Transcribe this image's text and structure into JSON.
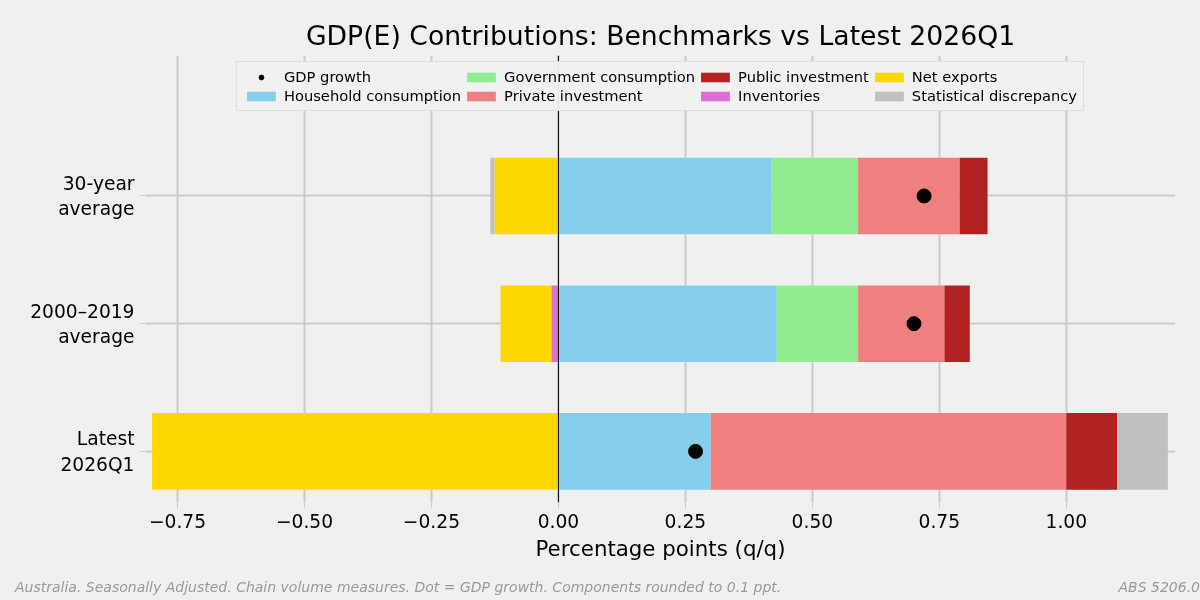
{
  "chart_data": {
    "type": "bar",
    "orientation": "horizontal",
    "stacked": true,
    "title": "GDP(E) Contributions: Benchmarks vs Latest 2026Q1",
    "xlabel": "Percentage points (q/q)",
    "categories": [
      "30-year\naverage",
      "2000–2019\naverage",
      "Latest\n2026Q1"
    ],
    "series": [
      {
        "name": "GDP growth",
        "type": "scatter",
        "color": "#000000",
        "values": [
          0.72,
          0.7,
          0.27
        ]
      },
      {
        "name": "Household consumption",
        "color": "#87ceeb",
        "values": [
          0.42,
          0.43,
          0.3
        ]
      },
      {
        "name": "Government consumption",
        "color": "#90ee90",
        "values": [
          0.17,
          0.16,
          0.0
        ]
      },
      {
        "name": "Private investment",
        "color": "#f08080",
        "values": [
          0.2,
          0.17,
          0.7
        ]
      },
      {
        "name": "Public investment",
        "color": "#b22222",
        "values": [
          0.055,
          0.05,
          0.1
        ]
      },
      {
        "name": "Inventories",
        "color": "#da70d6",
        "values": [
          0.0,
          -0.014,
          0.0
        ]
      },
      {
        "name": "Net exports",
        "color": "#ffd700",
        "values": [
          -0.126,
          -0.1,
          -0.8
        ]
      },
      {
        "name": "Statistical discrepancy",
        "color": "#c0c0c0",
        "values": [
          -0.008,
          0.0,
          0.1
        ]
      }
    ],
    "xlim": [
      -0.813,
      1.215
    ],
    "xticks": [
      {
        "value": -0.75,
        "label": "−0.75"
      },
      {
        "value": -0.5,
        "label": "−0.50"
      },
      {
        "value": -0.25,
        "label": "−0.25"
      },
      {
        "value": 0,
        "label": "0.00"
      },
      {
        "value": 0.25,
        "label": "0.25"
      },
      {
        "value": 0.5,
        "label": "0.50"
      },
      {
        "value": 0.75,
        "label": "0.75"
      },
      {
        "value": 1.0,
        "label": "1.00"
      }
    ],
    "ref_lines": [
      {
        "axis": "x",
        "value": 0,
        "color": "#000000"
      }
    ],
    "grid": true,
    "legend": "top",
    "marker": "circle",
    "annotations": [
      "Australia. Seasonally Adjusted. Chain volume measures. Dot = GDP growth. Components rounded to 0.1 ppt.",
      "ABS 5206.0"
    ]
  }
}
